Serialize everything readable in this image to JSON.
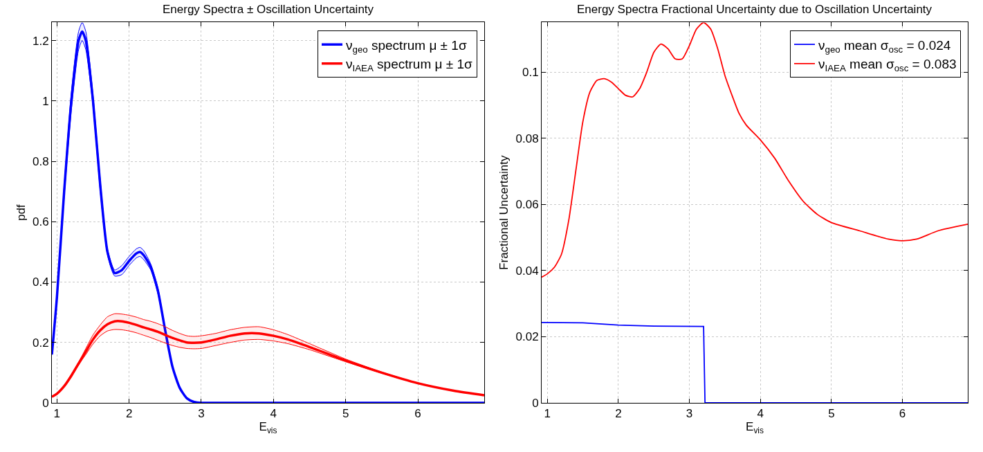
{
  "chart_data": [
    {
      "type": "line",
      "title": "Energy Spectra ± Oscillation Uncertainty",
      "xlabel": "E$_{vis}$",
      "ylabel": "pdf",
      "xlim": [
        0.93,
        6.92
      ],
      "ylim": [
        0,
        1.26
      ],
      "xticks": [
        1,
        2,
        3,
        4,
        5,
        6
      ],
      "yticks": [
        0,
        0.2,
        0.4,
        0.6,
        0.8,
        1,
        1.2
      ],
      "grid": true,
      "legend": "top right",
      "line_style": "solid",
      "x": [
        0.93,
        1.0,
        1.1,
        1.2,
        1.3,
        1.35,
        1.4,
        1.5,
        1.6,
        1.7,
        1.8,
        1.9,
        2.0,
        2.1,
        2.15,
        2.2,
        2.3,
        2.4,
        2.5,
        2.6,
        2.7,
        2.8,
        2.9,
        3.0,
        3.2,
        3.4,
        3.6,
        3.8,
        4.0,
        4.2,
        4.5,
        5.0,
        5.5,
        6.0,
        6.5,
        6.92
      ],
      "series": [
        {
          "name": "ν$_{geo}$ spectrum μ ± 1σ",
          "color": "#0000ff",
          "values": [
            0.16,
            0.35,
            0.7,
            1.0,
            1.2,
            1.23,
            1.2,
            1.0,
            0.72,
            0.5,
            0.43,
            0.44,
            0.47,
            0.495,
            0.5,
            0.49,
            0.45,
            0.37,
            0.24,
            0.12,
            0.05,
            0.015,
            0.003,
            0,
            0,
            0,
            0,
            0,
            0,
            0,
            0,
            0,
            0,
            0,
            0,
            0
          ],
          "lower": [
            0.16,
            0.34,
            0.68,
            0.97,
            1.17,
            1.2,
            1.17,
            0.98,
            0.7,
            0.49,
            0.42,
            0.425,
            0.455,
            0.48,
            0.485,
            0.475,
            0.44,
            0.36,
            0.235,
            0.118,
            0.05,
            0.015,
            0.003,
            0,
            0,
            0,
            0,
            0,
            0,
            0,
            0,
            0,
            0,
            0,
            0,
            0
          ],
          "upper": [
            0.16,
            0.36,
            0.72,
            1.03,
            1.23,
            1.26,
            1.23,
            1.02,
            0.74,
            0.51,
            0.44,
            0.455,
            0.485,
            0.51,
            0.515,
            0.505,
            0.46,
            0.38,
            0.245,
            0.122,
            0.05,
            0.015,
            0.003,
            0,
            0,
            0,
            0,
            0,
            0,
            0,
            0,
            0,
            0,
            0,
            0,
            0
          ]
        },
        {
          "name": "ν$_{IAEA}$ spectrum μ ± 1σ",
          "color": "#ff0000",
          "values": [
            0.02,
            0.03,
            0.055,
            0.09,
            0.13,
            0.15,
            0.17,
            0.21,
            0.24,
            0.26,
            0.27,
            0.27,
            0.265,
            0.258,
            0.254,
            0.25,
            0.243,
            0.235,
            0.225,
            0.215,
            0.207,
            0.2,
            0.199,
            0.2,
            0.21,
            0.222,
            0.23,
            0.23,
            0.222,
            0.21,
            0.185,
            0.14,
            0.1,
            0.065,
            0.04,
            0.025
          ],
          "lower": [
            0.02,
            0.03,
            0.053,
            0.085,
            0.125,
            0.143,
            0.16,
            0.195,
            0.222,
            0.238,
            0.243,
            0.242,
            0.238,
            0.232,
            0.228,
            0.224,
            0.216,
            0.207,
            0.198,
            0.19,
            0.184,
            0.18,
            0.179,
            0.18,
            0.19,
            0.2,
            0.208,
            0.21,
            0.205,
            0.196,
            0.176,
            0.136,
            0.098,
            0.064,
            0.04,
            0.025
          ],
          "upper": [
            0.02,
            0.03,
            0.057,
            0.095,
            0.135,
            0.157,
            0.18,
            0.225,
            0.258,
            0.285,
            0.295,
            0.294,
            0.29,
            0.284,
            0.28,
            0.276,
            0.27,
            0.262,
            0.252,
            0.24,
            0.23,
            0.222,
            0.22,
            0.222,
            0.23,
            0.242,
            0.25,
            0.252,
            0.242,
            0.226,
            0.196,
            0.145,
            0.102,
            0.066,
            0.04,
            0.025
          ]
        }
      ]
    },
    {
      "type": "line",
      "title": "Energy Spectra Fractional Uncertainty due to Oscillation Uncertainty",
      "xlabel": "E$_{vis}$",
      "ylabel": "Fractional Uncertainty",
      "xlim": [
        0.92,
        6.92
      ],
      "ylim": [
        0,
        0.115
      ],
      "xticks": [
        1,
        2,
        3,
        4,
        5,
        6
      ],
      "yticks": [
        0,
        0.02,
        0.04,
        0.06,
        0.08,
        0.1
      ],
      "grid": true,
      "legend": "top right",
      "line_style": "solid",
      "series": [
        {
          "name": "ν$_{geo}$ mean σ$_{osc}$ = 0.024",
          "color": "#0000ff",
          "x": [
            0.92,
            1.5,
            2.0,
            2.5,
            3.2,
            3.22,
            6.92
          ],
          "values": [
            0.0243,
            0.0242,
            0.0235,
            0.0232,
            0.0231,
            0,
            0
          ]
        },
        {
          "name": "ν$_{IAEA}$ mean σ$_{osc}$ = 0.083",
          "color": "#ff0000",
          "x": [
            0.92,
            1.0,
            1.1,
            1.2,
            1.3,
            1.4,
            1.5,
            1.6,
            1.7,
            1.8,
            1.9,
            2.0,
            2.1,
            2.2,
            2.3,
            2.4,
            2.5,
            2.6,
            2.7,
            2.8,
            2.9,
            3.0,
            3.1,
            3.2,
            3.3,
            3.4,
            3.5,
            3.6,
            3.7,
            3.8,
            4.0,
            4.2,
            4.4,
            4.6,
            4.8,
            5.0,
            5.4,
            5.8,
            6.0,
            6.2,
            6.5,
            6.92
          ],
          "values": [
            0.038,
            0.039,
            0.041,
            0.045,
            0.055,
            0.07,
            0.085,
            0.094,
            0.0975,
            0.098,
            0.097,
            0.095,
            0.093,
            0.0925,
            0.095,
            0.1,
            0.106,
            0.1085,
            0.107,
            0.104,
            0.104,
            0.108,
            0.113,
            0.115,
            0.113,
            0.107,
            0.099,
            0.093,
            0.0875,
            0.084,
            0.0795,
            0.074,
            0.067,
            0.061,
            0.057,
            0.0545,
            0.052,
            0.0495,
            0.049,
            0.0495,
            0.052,
            0.054
          ]
        }
      ]
    }
  ]
}
